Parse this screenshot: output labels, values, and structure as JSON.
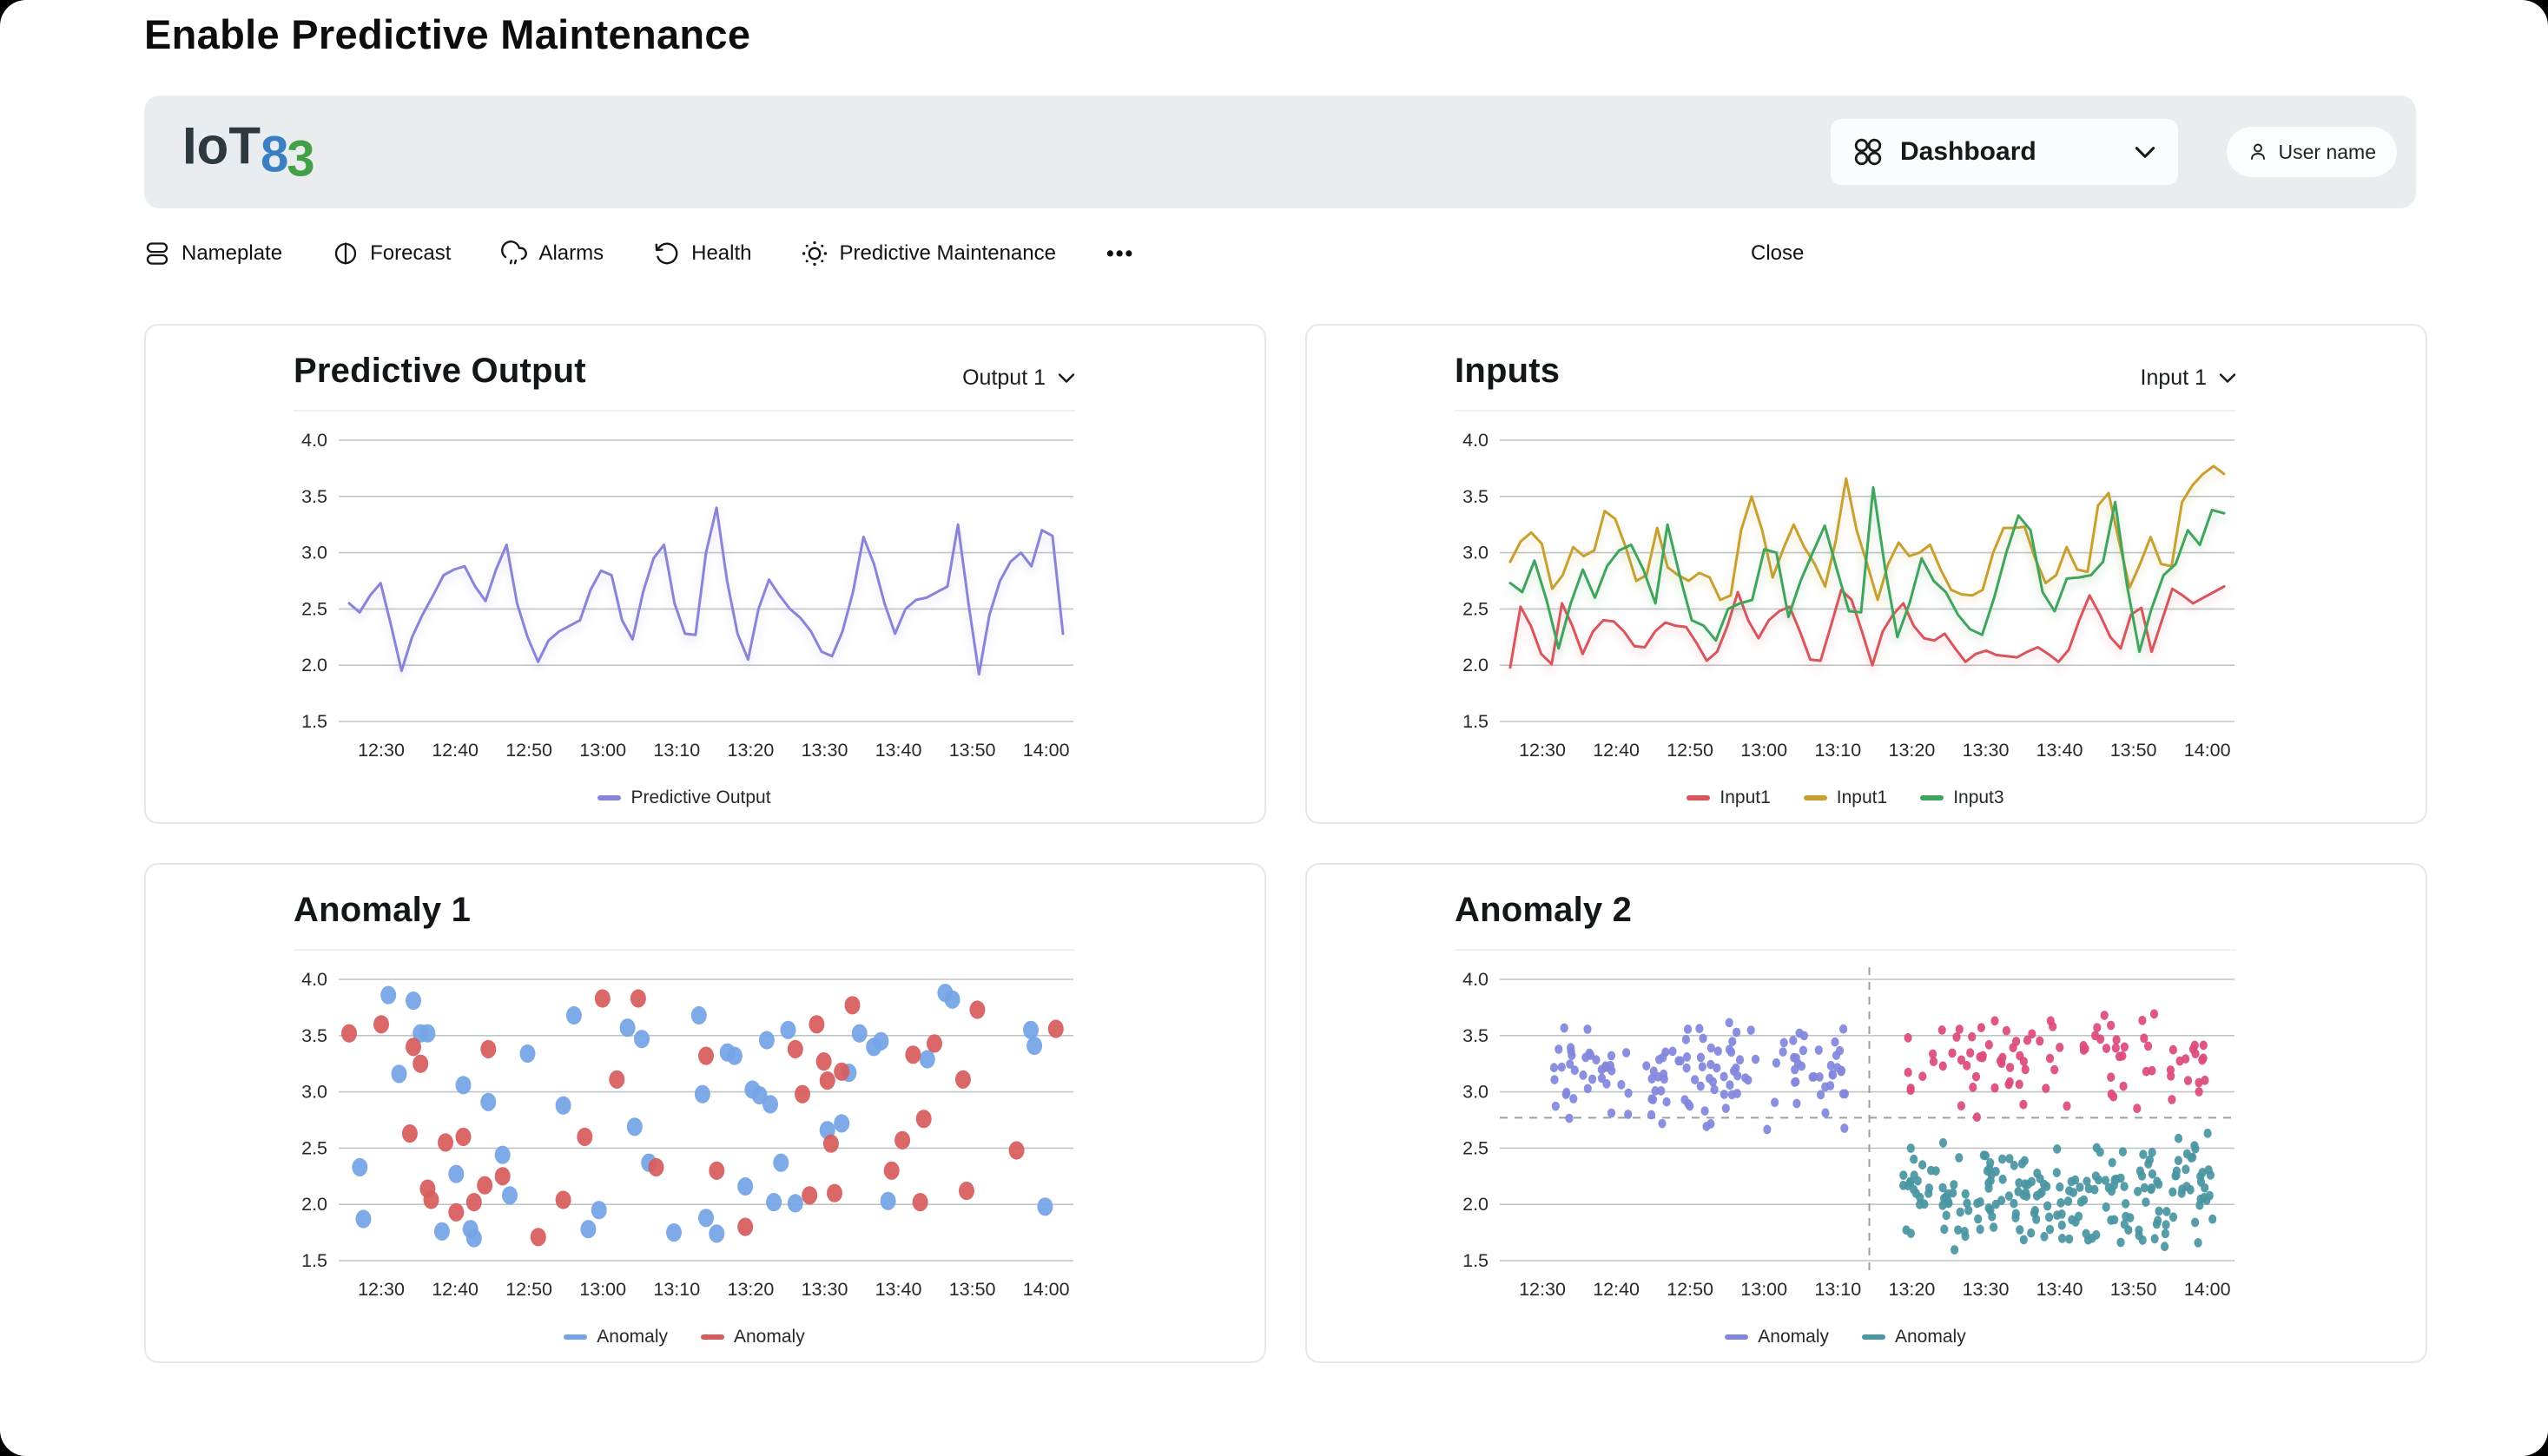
{
  "page": {
    "title": "Enable Predictive Maintenance"
  },
  "header": {
    "logo": {
      "iot": "IoT",
      "eight": "8",
      "three": "3",
      "color_iot": "#2e383f",
      "color_eight": "#3a7fc1",
      "color_three": "#43a047"
    },
    "dashboard": {
      "label": "Dashboard"
    },
    "user": {
      "label": "User name"
    }
  },
  "nav": {
    "items": [
      {
        "label": "Nameplate"
      },
      {
        "label": "Forecast"
      },
      {
        "label": "Alarms"
      },
      {
        "label": "Health"
      },
      {
        "label": "Predictive Maintenance"
      }
    ],
    "more": "•••",
    "close": "Close"
  },
  "colors": {
    "header_bg": "#e9edf0",
    "panel_border": "#e5e8eb",
    "gridline": "#c2c5c8",
    "crosshair": "#9aa0a6"
  },
  "chart_data": [
    {
      "panel": "Predictive Output",
      "type": "line",
      "dropdown": "Output 1",
      "ylim": [
        1.5,
        4.0
      ],
      "yticks": [
        "4.0",
        "3.5",
        "3.0",
        "2.5",
        "2.0",
        "1.5"
      ],
      "xticklabels": [
        "12:30",
        "12:40",
        "12:50",
        "13:00",
        "13:10",
        "13:20",
        "13:30",
        "13:40",
        "13:50",
        "14:00"
      ],
      "grid": true,
      "legend_position": "bottom",
      "series": [
        {
          "name": "Predictive Output",
          "color": "#8884d8",
          "values": [
            2.55,
            2.47,
            2.62,
            2.73,
            2.35,
            1.95,
            2.25,
            2.45,
            2.62,
            2.8,
            2.85,
            2.88,
            2.7,
            2.57,
            2.85,
            3.07,
            2.55,
            2.25,
            2.03,
            2.22,
            2.3,
            2.35,
            2.4,
            2.67,
            2.84,
            2.8,
            2.4,
            2.23,
            2.65,
            2.95,
            3.07,
            2.55,
            2.28,
            2.27,
            3.0,
            3.4,
            2.75,
            2.28,
            2.05,
            2.5,
            2.76,
            2.62,
            2.5,
            2.42,
            2.3,
            2.12,
            2.08,
            2.3,
            2.65,
            3.14,
            2.9,
            2.55,
            2.28,
            2.5,
            2.58,
            2.6,
            2.65,
            2.7,
            3.25,
            2.55,
            1.92,
            2.45,
            2.75,
            2.92,
            3.0,
            2.88,
            3.2,
            3.15,
            2.28
          ]
        }
      ]
    },
    {
      "panel": "Inputs",
      "type": "line",
      "dropdown": "Input 1",
      "ylim": [
        1.5,
        4.0
      ],
      "yticks": [
        "4.0",
        "3.5",
        "3.0",
        "2.5",
        "2.0",
        "1.5"
      ],
      "xticklabels": [
        "12:30",
        "12:40",
        "12:50",
        "13:00",
        "13:10",
        "13:20",
        "13:30",
        "13:40",
        "13:50",
        "14:00"
      ],
      "grid": true,
      "legend_position": "bottom",
      "series": [
        {
          "name": "Input1",
          "color": "#d9545c",
          "values": [
            1.98,
            2.52,
            2.35,
            2.1,
            2.01,
            2.55,
            2.35,
            2.1,
            2.3,
            2.4,
            2.39,
            2.3,
            2.17,
            2.16,
            2.3,
            2.38,
            2.35,
            2.34,
            2.2,
            2.04,
            2.12,
            2.35,
            2.65,
            2.4,
            2.24,
            2.4,
            2.48,
            2.52,
            2.3,
            2.05,
            2.04,
            2.35,
            2.67,
            2.58,
            2.3,
            2.0,
            2.3,
            2.45,
            2.55,
            2.35,
            2.24,
            2.22,
            2.28,
            2.15,
            2.03,
            2.1,
            2.13,
            2.09,
            2.08,
            2.07,
            2.12,
            2.16,
            2.1,
            2.03,
            2.14,
            2.4,
            2.62,
            2.45,
            2.25,
            2.15,
            2.45,
            2.51,
            2.12,
            2.4,
            2.68,
            2.62,
            2.55,
            2.6,
            2.65,
            2.7
          ]
        },
        {
          "name": "Input1",
          "color": "#c8a032",
          "values": [
            2.92,
            3.1,
            3.18,
            3.08,
            2.68,
            2.8,
            3.05,
            2.97,
            3.02,
            3.37,
            3.3,
            3.05,
            2.75,
            2.8,
            3.22,
            2.87,
            2.8,
            2.75,
            2.82,
            2.78,
            2.58,
            2.62,
            3.2,
            3.5,
            3.2,
            2.78,
            3.03,
            3.25,
            3.05,
            2.9,
            2.7,
            3.1,
            3.66,
            3.2,
            2.9,
            2.58,
            2.9,
            3.09,
            2.97,
            3.0,
            3.07,
            2.85,
            2.67,
            2.63,
            2.62,
            2.67,
            3.0,
            3.22,
            3.22,
            3.23,
            2.95,
            2.73,
            2.8,
            3.05,
            2.85,
            2.83,
            3.42,
            3.53,
            3.1,
            2.69,
            2.9,
            3.14,
            2.9,
            2.88,
            3.45,
            3.6,
            3.7,
            3.77,
            3.7
          ]
        },
        {
          "name": "Input3",
          "color": "#3fa45b",
          "values": [
            2.73,
            2.65,
            2.93,
            2.58,
            2.15,
            2.55,
            2.85,
            2.6,
            2.88,
            3.02,
            3.07,
            2.85,
            2.55,
            3.25,
            2.8,
            2.4,
            2.35,
            2.22,
            2.5,
            2.55,
            2.58,
            3.03,
            3.0,
            2.43,
            2.75,
            3.0,
            3.24,
            2.85,
            2.48,
            2.47,
            3.58,
            2.85,
            2.25,
            2.55,
            2.95,
            2.75,
            2.65,
            2.45,
            2.32,
            2.27,
            2.6,
            3.0,
            3.33,
            3.2,
            2.65,
            2.48,
            2.77,
            2.78,
            2.8,
            2.92,
            3.45,
            2.7,
            2.12,
            2.5,
            2.8,
            2.9,
            3.2,
            3.07,
            3.38,
            3.35
          ]
        }
      ]
    },
    {
      "panel": "Anomaly 1",
      "type": "scatter",
      "ylim": [
        1.5,
        4.0
      ],
      "yticks": [
        "4.0",
        "3.5",
        "3.0",
        "2.5",
        "2.0",
        "1.5"
      ],
      "xticklabels": [
        "12:30",
        "12:40",
        "12:50",
        "13:00",
        "13:10",
        "13:20",
        "13:30",
        "13:40",
        "13:50",
        "14:00"
      ],
      "grid": true,
      "legend_position": "bottom",
      "point_radius": 9,
      "series": [
        {
          "name": "Anomaly",
          "color": "#74a4e6",
          "points": [
            [
              0.015,
              2.33
            ],
            [
              0.02,
              1.87
            ],
            [
              0.055,
              3.86
            ],
            [
              0.07,
              3.16
            ],
            [
              0.09,
              3.81
            ],
            [
              0.1,
              3.52
            ],
            [
              0.11,
              3.52
            ],
            [
              0.13,
              1.76
            ],
            [
              0.15,
              2.27
            ],
            [
              0.16,
              3.06
            ],
            [
              0.17,
              1.78
            ],
            [
              0.175,
              1.7
            ],
            [
              0.195,
              2.91
            ],
            [
              0.215,
              2.44
            ],
            [
              0.225,
              2.08
            ],
            [
              0.25,
              3.34
            ],
            [
              0.3,
              2.88
            ],
            [
              0.315,
              3.68
            ],
            [
              0.335,
              1.78
            ],
            [
              0.35,
              1.95
            ],
            [
              0.39,
              3.57
            ],
            [
              0.4,
              2.69
            ],
            [
              0.41,
              3.47
            ],
            [
              0.42,
              2.37
            ],
            [
              0.455,
              1.75
            ],
            [
              0.49,
              3.68
            ],
            [
              0.495,
              2.98
            ],
            [
              0.5,
              1.88
            ],
            [
              0.515,
              1.74
            ],
            [
              0.53,
              3.35
            ],
            [
              0.54,
              3.32
            ],
            [
              0.555,
              2.16
            ],
            [
              0.565,
              3.02
            ],
            [
              0.575,
              2.97
            ],
            [
              0.585,
              3.46
            ],
            [
              0.59,
              2.89
            ],
            [
              0.595,
              2.02
            ],
            [
              0.605,
              2.37
            ],
            [
              0.615,
              3.55
            ],
            [
              0.625,
              2.01
            ],
            [
              0.67,
              2.66
            ],
            [
              0.69,
              2.72
            ],
            [
              0.7,
              3.17
            ],
            [
              0.715,
              3.52
            ],
            [
              0.735,
              3.4
            ],
            [
              0.745,
              3.45
            ],
            [
              0.755,
              2.03
            ],
            [
              0.81,
              3.29
            ],
            [
              0.835,
              3.88
            ],
            [
              0.845,
              3.82
            ],
            [
              0.955,
              3.55
            ],
            [
              0.96,
              3.41
            ],
            [
              0.975,
              1.98
            ]
          ]
        },
        {
          "name": "Anomaly",
          "color": "#d75c5c",
          "points": [
            [
              0.0,
              3.52
            ],
            [
              0.045,
              3.6
            ],
            [
              0.085,
              2.63
            ],
            [
              0.09,
              3.4
            ],
            [
              0.1,
              3.25
            ],
            [
              0.11,
              2.14
            ],
            [
              0.115,
              2.04
            ],
            [
              0.135,
              2.55
            ],
            [
              0.15,
              1.93
            ],
            [
              0.16,
              2.6
            ],
            [
              0.175,
              2.02
            ],
            [
              0.19,
              2.17
            ],
            [
              0.195,
              3.38
            ],
            [
              0.215,
              2.25
            ],
            [
              0.265,
              1.71
            ],
            [
              0.3,
              2.04
            ],
            [
              0.33,
              2.6
            ],
            [
              0.355,
              3.83
            ],
            [
              0.375,
              3.11
            ],
            [
              0.405,
              3.83
            ],
            [
              0.43,
              2.33
            ],
            [
              0.5,
              3.32
            ],
            [
              0.515,
              2.3
            ],
            [
              0.555,
              1.8
            ],
            [
              0.625,
              3.38
            ],
            [
              0.635,
              2.98
            ],
            [
              0.645,
              2.08
            ],
            [
              0.655,
              3.6
            ],
            [
              0.665,
              3.27
            ],
            [
              0.67,
              3.1
            ],
            [
              0.675,
              2.54
            ],
            [
              0.68,
              2.1
            ],
            [
              0.69,
              3.18
            ],
            [
              0.705,
              3.77
            ],
            [
              0.76,
              2.3
            ],
            [
              0.775,
              2.57
            ],
            [
              0.79,
              3.33
            ],
            [
              0.8,
              2.02
            ],
            [
              0.805,
              2.76
            ],
            [
              0.82,
              3.43
            ],
            [
              0.86,
              3.11
            ],
            [
              0.865,
              2.12
            ],
            [
              0.88,
              3.73
            ],
            [
              0.935,
              2.48
            ],
            [
              0.99,
              3.56
            ]
          ]
        }
      ]
    },
    {
      "panel": "Anomaly 2",
      "type": "scatter",
      "ylim": [
        1.5,
        4.0
      ],
      "yticks": [
        "4.0",
        "3.5",
        "3.0",
        "2.5",
        "2.0",
        "1.5"
      ],
      "xticklabels": [
        "12:30",
        "12:40",
        "12:50",
        "13:00",
        "13:10",
        "13:20",
        "13:30",
        "13:40",
        "13:50",
        "14:00"
      ],
      "grid": true,
      "legend_position": "bottom",
      "point_radius": 4.6,
      "crosshair": {
        "x_frac": 0.503,
        "y_value": 2.77,
        "color": "#9aa0a6",
        "style": "dashed"
      },
      "series": [
        {
          "name": "Anomaly",
          "color": "#8286dd",
          "in_legend": true,
          "cluster": {
            "count": 135,
            "x_range": [
              0.055,
              0.47
            ],
            "y_range": [
              2.64,
              3.72
            ],
            "seed": 11
          }
        },
        {
          "name": "Anomaly",
          "color": "#dd4a7e",
          "in_legend": false,
          "cluster": {
            "count": 92,
            "x_range": [
              0.555,
              0.975
            ],
            "y_range": [
              2.77,
              3.8
            ],
            "seed": 23
          }
        },
        {
          "name": "Anomaly",
          "color": "#4a96a3",
          "in_legend": true,
          "cluster": {
            "count": 205,
            "x_range": [
              0.55,
              0.985
            ],
            "y_range": [
              1.55,
              2.66
            ],
            "seed": 37
          }
        }
      ]
    }
  ]
}
